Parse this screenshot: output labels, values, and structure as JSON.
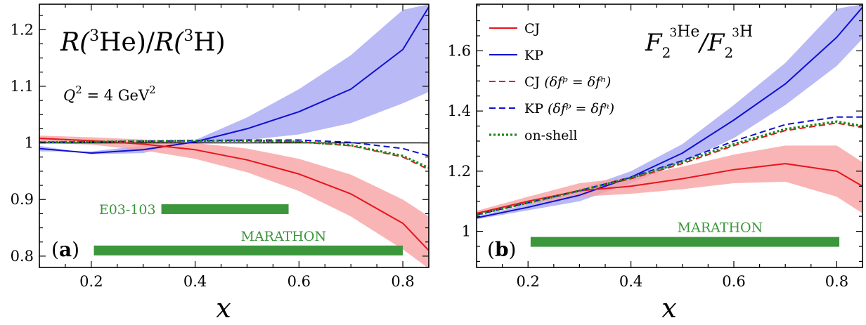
{
  "colors": {
    "cj": "#e8141c",
    "kp": "#1010d0",
    "cj_band": "#f7a3a3",
    "kp_band": "#a8a8f4",
    "onshell": "#1a8a1a",
    "experiment": "#3c963c"
  },
  "chart_data": [
    {
      "type": "line",
      "panel_label_letter": "a",
      "title_parts": {
        "r1": "R(",
        "s1": "3",
        "n1": "He)/",
        "r2": "R(",
        "s2": "3",
        "n2": "H)"
      },
      "annotation": {
        "q": "Q",
        "exp": "2",
        "eq": " = 4 GeV",
        "unit_exp": "2"
      },
      "xlabel": "x",
      "xlim": [
        0.1,
        0.85
      ],
      "ylim": [
        0.78,
        1.245
      ],
      "xticks": [
        0.2,
        0.4,
        0.6,
        0.8
      ],
      "xtick_labels": [
        "0.2",
        "0.4",
        "0.6",
        "0.8"
      ],
      "yticks": [
        0.8,
        0.9,
        1.0,
        1.1,
        1.2
      ],
      "ytick_labels": [
        "0.8",
        "0.9",
        "1",
        "1.1",
        "1.2"
      ],
      "reference_line": 1.0,
      "experiments": [
        {
          "label": "E03-103",
          "x_range": [
            0.335,
            0.58
          ],
          "y": 0.883
        },
        {
          "label": "MARATHON",
          "x_range": [
            0.205,
            0.8
          ],
          "y": 0.81
        }
      ],
      "series": [
        {
          "key": "kp",
          "style": "solid",
          "x": [
            0.1,
            0.2,
            0.3,
            0.4,
            0.5,
            0.6,
            0.7,
            0.8,
            0.85
          ],
          "y": [
            0.99,
            0.982,
            0.988,
            1.002,
            1.025,
            1.055,
            1.095,
            1.165,
            1.24
          ],
          "band_low": [
            0.985,
            0.985,
            0.995,
            1.0,
            1.005,
            1.015,
            1.035,
            1.07,
            1.09
          ],
          "band_high": [
            0.995,
            0.98,
            0.982,
            1.005,
            1.045,
            1.095,
            1.155,
            1.235,
            1.245
          ]
        },
        {
          "key": "cj",
          "style": "solid",
          "x": [
            0.1,
            0.2,
            0.3,
            0.4,
            0.5,
            0.6,
            0.7,
            0.8,
            0.85
          ],
          "y": [
            1.008,
            1.004,
            0.998,
            0.988,
            0.97,
            0.945,
            0.91,
            0.858,
            0.81
          ],
          "band_low": [
            1.0,
            0.997,
            0.987,
            0.972,
            0.948,
            0.915,
            0.87,
            0.812,
            0.778
          ],
          "band_high": [
            1.013,
            1.01,
            1.006,
            1.0,
            0.99,
            0.972,
            0.944,
            0.9,
            0.87
          ]
        },
        {
          "key": "cj_eq",
          "style": "dashed",
          "x": [
            0.1,
            0.2,
            0.3,
            0.4,
            0.5,
            0.6,
            0.7,
            0.8,
            0.85
          ],
          "y": [
            1.001,
            1.002,
            1.003,
            1.004,
            1.004,
            1.002,
            0.995,
            0.975,
            0.953
          ]
        },
        {
          "key": "kp_eq",
          "style": "dashed",
          "x": [
            0.1,
            0.2,
            0.3,
            0.4,
            0.5,
            0.6,
            0.7,
            0.8,
            0.85
          ],
          "y": [
            1.001,
            1.002,
            1.003,
            1.004,
            1.005,
            1.005,
            1.001,
            0.99,
            0.977
          ]
        },
        {
          "key": "onshell",
          "style": "dotted",
          "x": [
            0.1,
            0.2,
            0.3,
            0.4,
            0.5,
            0.6,
            0.7,
            0.8,
            0.85
          ],
          "y": [
            1.001,
            1.002,
            1.003,
            1.004,
            1.004,
            1.002,
            0.996,
            0.977,
            0.956
          ]
        }
      ]
    },
    {
      "type": "line",
      "panel_label_letter": "b",
      "title_parts": {
        "f1": "F",
        "sub1": "2",
        "sup1a": "3",
        "sup1b": "He",
        "slash": "/",
        "f2": "F",
        "sub2": "2",
        "sup2a": "3",
        "sup2b": "H"
      },
      "xlabel": "x",
      "xlim": [
        0.1,
        0.85
      ],
      "ylim": [
        0.88,
        1.755
      ],
      "xticks": [
        0.2,
        0.4,
        0.6,
        0.8
      ],
      "xtick_labels": [
        "0.2",
        "0.4",
        "0.6",
        "0.8"
      ],
      "yticks": [
        1.0,
        1.2,
        1.4,
        1.6
      ],
      "ytick_labels": [
        "1",
        "1.2",
        "1.4",
        "1.6"
      ],
      "experiments": [
        {
          "label": "MARATHON",
          "x_range": [
            0.205,
            0.805
          ],
          "y": 0.965
        }
      ],
      "legend": [
        {
          "key": "cj",
          "style": "solid",
          "label_main": "CJ",
          "label_paren": ""
        },
        {
          "key": "kp",
          "style": "solid",
          "label_main": "KP",
          "label_paren": ""
        },
        {
          "key": "cj_eq",
          "style": "dashed",
          "label_main": "CJ",
          "label_paren": "(δfᵖ = δfⁿ)"
        },
        {
          "key": "kp_eq",
          "style": "dashed",
          "label_main": "KP",
          "label_paren": "(δfᵖ = δfⁿ)"
        },
        {
          "key": "onshell",
          "style": "dotted",
          "label_main": "on-shell",
          "label_paren": ""
        }
      ],
      "series": [
        {
          "key": "kp",
          "style": "solid",
          "x": [
            0.1,
            0.2,
            0.3,
            0.4,
            0.5,
            0.6,
            0.7,
            0.8,
            0.85
          ],
          "y": [
            1.045,
            1.08,
            1.12,
            1.18,
            1.26,
            1.37,
            1.49,
            1.645,
            1.745
          ],
          "band_low": [
            1.04,
            1.07,
            1.1,
            1.16,
            1.23,
            1.31,
            1.42,
            1.55,
            1.64
          ],
          "band_high": [
            1.05,
            1.09,
            1.14,
            1.2,
            1.29,
            1.42,
            1.56,
            1.74,
            1.755
          ]
        },
        {
          "key": "cj",
          "style": "solid",
          "x": [
            0.1,
            0.2,
            0.3,
            0.4,
            0.5,
            0.6,
            0.7,
            0.8,
            0.85
          ],
          "y": [
            1.06,
            1.1,
            1.135,
            1.15,
            1.175,
            1.205,
            1.225,
            1.2,
            1.15
          ],
          "band_low": [
            1.055,
            1.09,
            1.115,
            1.125,
            1.14,
            1.16,
            1.165,
            1.115,
            1.06
          ],
          "band_high": [
            1.068,
            1.115,
            1.16,
            1.18,
            1.215,
            1.255,
            1.285,
            1.285,
            1.23
          ]
        },
        {
          "key": "cj_eq",
          "style": "dashed",
          "x": [
            0.1,
            0.2,
            0.3,
            0.4,
            0.5,
            0.6,
            0.7,
            0.8,
            0.85
          ],
          "y": [
            1.055,
            1.095,
            1.135,
            1.175,
            1.225,
            1.285,
            1.335,
            1.36,
            1.345
          ]
        },
        {
          "key": "kp_eq",
          "style": "dashed",
          "x": [
            0.1,
            0.2,
            0.3,
            0.4,
            0.5,
            0.6,
            0.7,
            0.8,
            0.85
          ],
          "y": [
            1.055,
            1.095,
            1.135,
            1.18,
            1.235,
            1.3,
            1.355,
            1.38,
            1.38
          ]
        },
        {
          "key": "onshell",
          "style": "dotted",
          "x": [
            0.1,
            0.2,
            0.3,
            0.4,
            0.5,
            0.6,
            0.7,
            0.8,
            0.85
          ],
          "y": [
            1.055,
            1.095,
            1.135,
            1.178,
            1.23,
            1.29,
            1.34,
            1.365,
            1.35
          ]
        }
      ]
    }
  ]
}
